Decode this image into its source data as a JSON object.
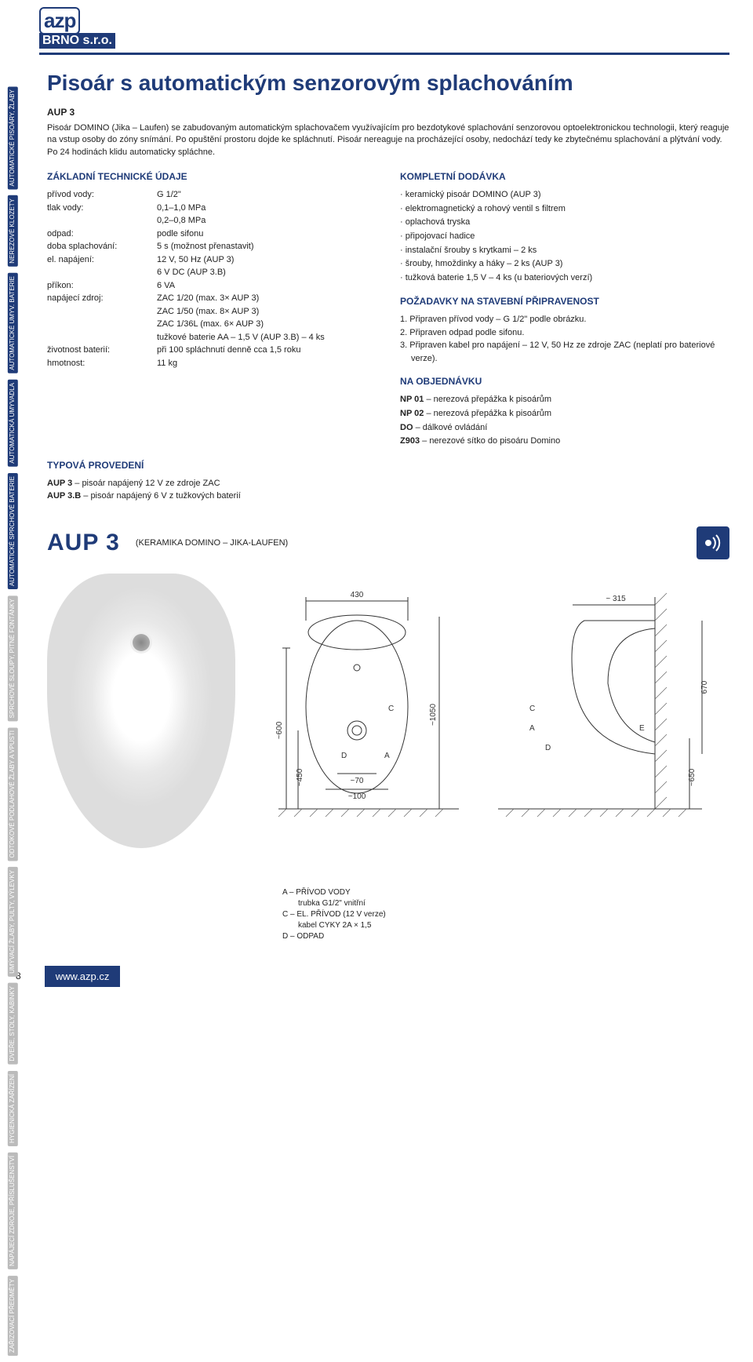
{
  "logo": {
    "top": "azp",
    "bottom": "BRNO s.r.o."
  },
  "sideTabs": [
    {
      "label": "AUTOMATICKÉ\nPISOÁRY, ŽLABY",
      "active": true
    },
    {
      "label": "NEREZOVÉ\nKLOZETY",
      "active": true
    },
    {
      "label": "AUTOMATICKÉ\nUMYV. BATERIE",
      "active": true
    },
    {
      "label": "AUTOMATICKÁ\nUMYVADLA",
      "active": true
    },
    {
      "label": "AUTOMATICKÉ\nSPRCHOVÉ\nBATERIE",
      "active": true
    },
    {
      "label": "SPRCHOVÉ\nSLOUPY, PITNÉ\nFONTÁNKY",
      "active": false
    },
    {
      "label": "ODTOKOVÉ\nPODLAHOVÉ\nŽLABY A VPUSTI",
      "active": false
    },
    {
      "label": "UMÝVACÍ ŽLABY,\nPULTY, VÝLEVKY",
      "active": false
    },
    {
      "label": "DVEŘE, STOLY,\nKABINKY",
      "active": false
    },
    {
      "label": "HYGIENICKÁ\nZAŘÍZENÍ",
      "active": false
    },
    {
      "label": "NAPÁJECÍ ZDROJE,\nPŘÍSLUŠENSTVÍ",
      "active": false
    },
    {
      "label": "ZAŘIZOVACÍ\nPŘEDMĚTY",
      "active": false
    }
  ],
  "title": "Pisoár s automatickým senzorovým splachováním",
  "code": "AUP 3",
  "intro": "Pisoár DOMINO (Jika – Laufen) se zabudovaným automatickým splachovačem využívajícím pro bezdotykové splachování senzorovou optoelektronickou technologii, který reaguje na vstup osoby do zóny snímání. Po opuštění prostoru dojde ke spláchnutí. Pisoár nereaguje na procházející osoby, nedochází tedy ke zbytečnému splachování a plýtvání vody. Po 24 hodinách klidu automaticky spláchne.",
  "specsTitle": "ZÁKLADNÍ TECHNICKÉ ÚDAJE",
  "specs": [
    {
      "k": "přívod vody:",
      "v": "G 1/2\""
    },
    {
      "k": "tlak vody:",
      "v": "0,1–1,0 MPa"
    },
    {
      "k": "",
      "v": "0,2–0,8 MPa"
    },
    {
      "k": "odpad:",
      "v": "podle sifonu"
    },
    {
      "k": "doba splachování:",
      "v": "5 s (možnost přenastavit)"
    },
    {
      "k": "el. napájení:",
      "v": "12 V, 50 Hz (AUP 3)"
    },
    {
      "k": "",
      "v": "6 V DC (AUP 3.B)"
    },
    {
      "k": "příkon:",
      "v": "6 VA"
    },
    {
      "k": "napájecí zdroj:",
      "v": "ZAC 1/20 (max. 3× AUP 3)"
    },
    {
      "k": "",
      "v": "ZAC 1/50 (max. 8× AUP 3)"
    },
    {
      "k": "",
      "v": "ZAC 1/36L (max. 6× AUP 3)"
    },
    {
      "k": "",
      "v": "tužkové baterie AA – 1,5 V (AUP 3.B) – 4 ks"
    },
    {
      "k": "životnost baterií:",
      "v": "při 100 spláchnutí denně cca 1,5 roku"
    },
    {
      "k": "hmotnost:",
      "v": "11 kg"
    }
  ],
  "deliveryTitle": "KOMPLETNÍ DODÁVKA",
  "delivery": [
    "keramický pisoár DOMINO (AUP 3)",
    "elektromagnetický a rohový ventil s filtrem",
    "oplachová tryska",
    "připojovací hadice",
    "instalační šrouby s krytkami – 2 ks",
    "šrouby, hmoždinky a háky – 2 ks (AUP 3)",
    "tužková baterie 1,5 V – 4 ks (u bateriových verzí)"
  ],
  "reqTitle": "POŽADAVKY NA STAVEBNÍ PŘIPRAVENOST",
  "reqs": [
    "1. Připraven přívod vody – G 1/2\" podle obrázku.",
    "2. Připraven odpad podle sifonu.",
    "3. Připraven kabel pro napájení – 12 V, 50 Hz ze zdroje ZAC (neplatí pro bateriové verze)."
  ],
  "orderTitle": "NA OBJEDNÁVKU",
  "orders": [
    {
      "code": "NP 01",
      "desc": "– nerezová přepážka k pisoárům"
    },
    {
      "code": "NP 02",
      "desc": "– nerezová přepážka k pisoárům"
    },
    {
      "code": "DO",
      "desc": "– dálkové ovládání"
    },
    {
      "code": "Z903",
      "desc": "– nerezové sítko do pisoáru Domino"
    }
  ],
  "typesTitle": "TYPOVÁ PROVEDENÍ",
  "types": [
    {
      "code": "AUP 3",
      "desc": "– pisoár napájený 12 V ze zdroje ZAC"
    },
    {
      "code": "AUP 3.B",
      "desc": "– pisoár napájený 6 V z tužkových baterií"
    }
  ],
  "modelCode": "AUP 3",
  "modelSub": "(KERAMIKA DOMINO – JIKA-LAUFEN)",
  "dims": {
    "width": "430",
    "side_width": "~ 315",
    "side_height_full": "670",
    "mount_height": "~1050",
    "to_drain": "~600",
    "drain_low": "~450",
    "inlet_offset": "~70",
    "inlet_row": "~100",
    "install_height": "~650"
  },
  "legend": {
    "a": "A – PŘÍVOD VODY",
    "a_sub": "trubka G1/2\" vnitřní",
    "c": "C – EL. PŘÍVOD (12 V verze)",
    "c_sub": "kabel CYKY 2A × 1,5",
    "d": "D – ODPAD"
  },
  "pageNum": "8",
  "footerLink": "www.azp.cz",
  "colors": {
    "accent": "#1f3b78"
  }
}
